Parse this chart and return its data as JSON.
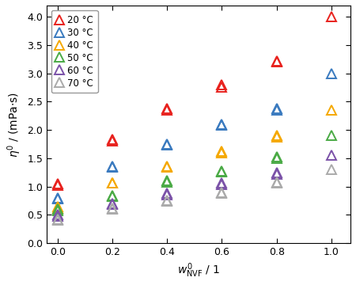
{
  "series": [
    {
      "label": "20 °C",
      "color": "#e8211d",
      "x": [
        0.0,
        0.0,
        0.2,
        0.2,
        0.4,
        0.4,
        0.6,
        0.6,
        0.8,
        0.8,
        1.0
      ],
      "y": [
        1.05,
        1.02,
        1.84,
        1.8,
        2.35,
        2.38,
        2.8,
        2.76,
        3.22,
        3.2,
        4.0
      ]
    },
    {
      "label": "30 °C",
      "color": "#3a7abf",
      "x": [
        0.0,
        0.0,
        0.2,
        0.2,
        0.4,
        0.4,
        0.6,
        0.6,
        0.8,
        0.8,
        1.0
      ],
      "y": [
        0.8,
        0.78,
        1.36,
        1.34,
        1.74,
        1.75,
        2.08,
        2.1,
        2.35,
        2.38,
        3.0
      ]
    },
    {
      "label": "40 °C",
      "color": "#f5a800",
      "x": [
        0.0,
        0.0,
        0.2,
        0.2,
        0.4,
        0.4,
        0.6,
        0.6,
        0.8,
        0.8,
        1.0
      ],
      "y": [
        0.65,
        0.62,
        1.07,
        1.06,
        1.36,
        1.34,
        1.6,
        1.62,
        1.88,
        1.9,
        2.35
      ]
    },
    {
      "label": "50 °C",
      "color": "#4aaa45",
      "x": [
        0.0,
        0.0,
        0.2,
        0.2,
        0.4,
        0.4,
        0.6,
        0.6,
        0.8,
        0.8,
        1.0
      ],
      "y": [
        0.6,
        0.57,
        0.84,
        0.82,
        1.1,
        1.08,
        1.27,
        1.26,
        1.5,
        1.52,
        1.9
      ]
    },
    {
      "label": "60 °C",
      "color": "#7b52a8",
      "x": [
        0.0,
        0.0,
        0.2,
        0.2,
        0.4,
        0.4,
        0.6,
        0.6,
        0.8,
        0.8,
        1.0
      ],
      "y": [
        0.5,
        0.47,
        0.7,
        0.68,
        0.88,
        0.86,
        1.04,
        1.06,
        1.22,
        1.24,
        1.55
      ]
    },
    {
      "label": "70 °C",
      "color": "#aaaaaa",
      "x": [
        0.0,
        0.0,
        0.2,
        0.2,
        0.4,
        0.4,
        0.6,
        0.6,
        0.8,
        0.8,
        1.0
      ],
      "y": [
        0.42,
        0.4,
        0.62,
        0.6,
        0.75,
        0.74,
        0.88,
        0.9,
        1.06,
        1.08,
        1.3
      ]
    }
  ],
  "xlabel": "$w^0_\\mathrm{NVF}$ / 1",
  "ylabel": "$\\eta^0$ / (mPa·s)",
  "xlim": [
    -0.04,
    1.07
  ],
  "ylim": [
    0.0,
    4.2
  ],
  "xticks": [
    0.0,
    0.2,
    0.4,
    0.6,
    0.8,
    1.0
  ],
  "yticks": [
    0.0,
    0.5,
    1.0,
    1.5,
    2.0,
    2.5,
    3.0,
    3.5,
    4.0
  ],
  "marker_size": 9,
  "legend_loc": "upper left"
}
